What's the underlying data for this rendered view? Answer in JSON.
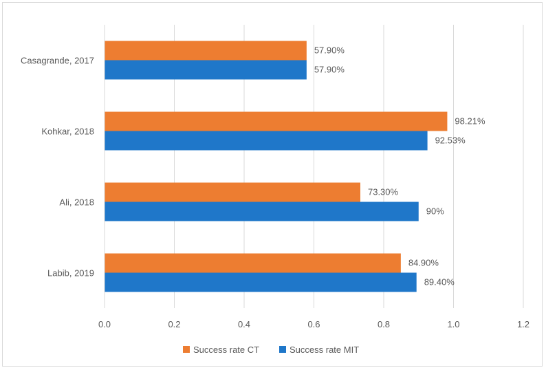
{
  "chart_data": {
    "type": "bar",
    "orientation": "horizontal",
    "title": "",
    "xlabel": "",
    "ylabel": "",
    "categories": [
      "Casagrande, 2017",
      "Kohkar, 2018",
      "Ali, 2018",
      "Labib, 2019"
    ],
    "series": [
      {
        "name": "Success rate CT",
        "color": "#ED7D31",
        "values": [
          0.579,
          0.9821,
          0.733,
          0.849
        ],
        "labels": [
          "57.90%",
          "98.21%",
          "73.30%",
          "84.90%"
        ]
      },
      {
        "name": "Success rate MIT",
        "color": "#1F77C9",
        "values": [
          0.579,
          0.9253,
          0.9,
          0.894
        ],
        "labels": [
          "57.90%",
          "92.53%",
          "90%",
          "89.40%"
        ]
      }
    ],
    "xlim": [
      0,
      1.2
    ],
    "xticks": [
      "0.0",
      "0.2",
      "0.4",
      "0.6",
      "0.8",
      "1.0",
      "1.2"
    ],
    "grid": true,
    "legend_position": "bottom"
  }
}
